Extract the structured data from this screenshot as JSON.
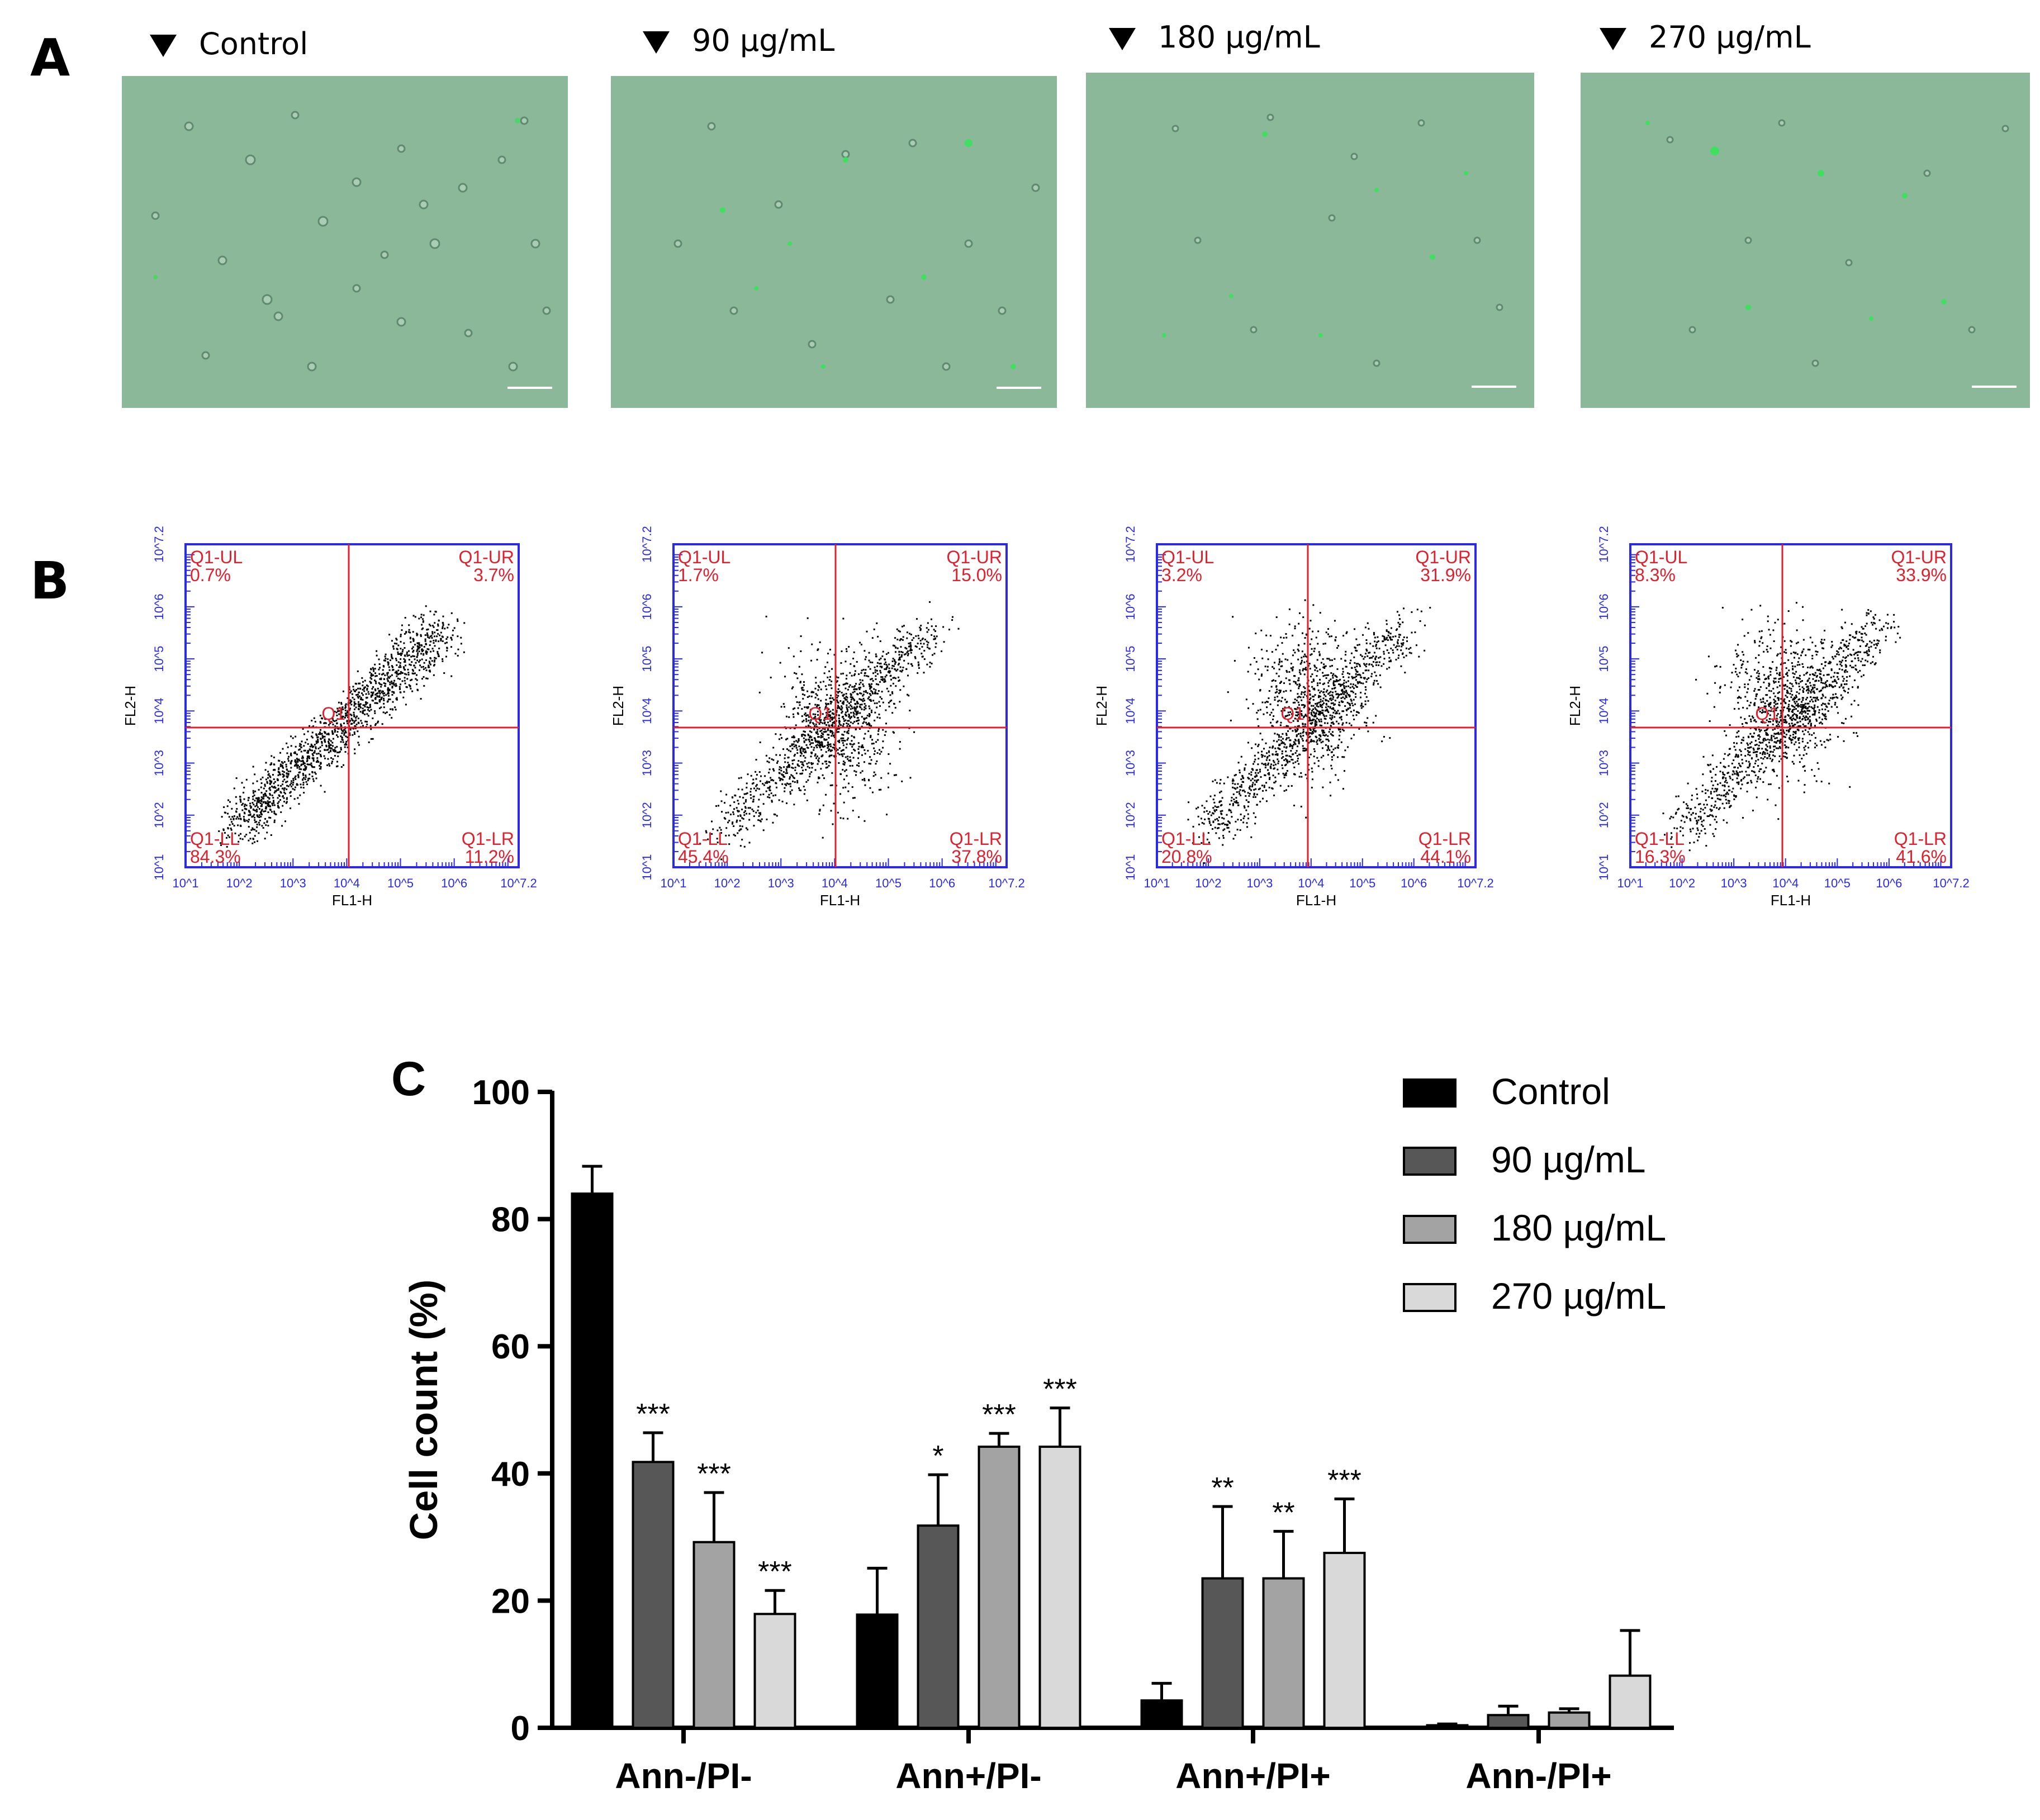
{
  "panels": {
    "a": "A",
    "b": "B",
    "c": "C"
  },
  "panel_a": {
    "labels": [
      "Control",
      "90 µg/mL",
      "180 µg/mL",
      "270 µg/mL"
    ],
    "image_descriptions": [
      "Control",
      "90 µg/mL",
      "180 µg/mL",
      "270 µg/mL"
    ]
  },
  "panel_b": {
    "axis": {
      "x_label": "FL1-H",
      "y_label": "FL2-H"
    },
    "quadrant_names": {
      "ul": "Q1-UL",
      "ur": "Q1-UR",
      "ll": "Q1-LL",
      "lr": "Q1-LR",
      "center": "Q1"
    },
    "tick_labels": [
      "10^1",
      "10^2",
      "10^3",
      "10^4",
      "10^5",
      "10^6",
      "10^7.2"
    ],
    "plots": [
      {
        "ul": "0.7%",
        "ur": "3.7%",
        "ll": "84.3%",
        "lr": "11.2%"
      },
      {
        "ul": "1.7%",
        "ur": "15.0%",
        "ll": "45.4%",
        "lr": "37.8%"
      },
      {
        "ul": "3.2%",
        "ur": "31.9%",
        "ll": "20.8%",
        "lr": "44.1%"
      },
      {
        "ul": "8.3%",
        "ur": "33.9%",
        "ll": "16.3%",
        "lr": "41.6%"
      }
    ]
  },
  "chart_data": {
    "type": "bar",
    "title": "",
    "xlabel": "",
    "ylabel": "Cell count (%)",
    "ylim": [
      0,
      100
    ],
    "yticks": [
      0,
      20,
      40,
      60,
      80,
      100
    ],
    "categories": [
      "Ann-/PI-",
      "Ann+/PI-",
      "Ann+/PI+",
      "Ann-/PI+"
    ],
    "legend_position": "top-right",
    "series": [
      {
        "name": "Control",
        "color": "#000000",
        "values": [
          84.0,
          17.8,
          4.3,
          0.4
        ],
        "errors": [
          4.3,
          7.3,
          2.7,
          0.2
        ],
        "significance": [
          "",
          "",
          "",
          ""
        ]
      },
      {
        "name": "90 µg/mL",
        "color": "#575757",
        "values": [
          41.8,
          31.8,
          23.5,
          2.0
        ],
        "errors": [
          4.6,
          8.0,
          11.3,
          1.4
        ],
        "significance": [
          "***",
          "*",
          "**",
          ""
        ]
      },
      {
        "name": "180 µg/mL",
        "color": "#a3a3a3",
        "values": [
          29.2,
          44.2,
          23.5,
          2.4
        ],
        "errors": [
          7.8,
          2.1,
          7.4,
          0.6
        ],
        "significance": [
          "***",
          "***",
          "**",
          ""
        ]
      },
      {
        "name": "270 µg/mL",
        "color": "#d9d9d9",
        "values": [
          17.9,
          44.2,
          27.5,
          8.2
        ],
        "errors": [
          3.7,
          6.1,
          8.5,
          7.1
        ],
        "significance": [
          "***",
          "***",
          "***",
          ""
        ]
      }
    ]
  }
}
